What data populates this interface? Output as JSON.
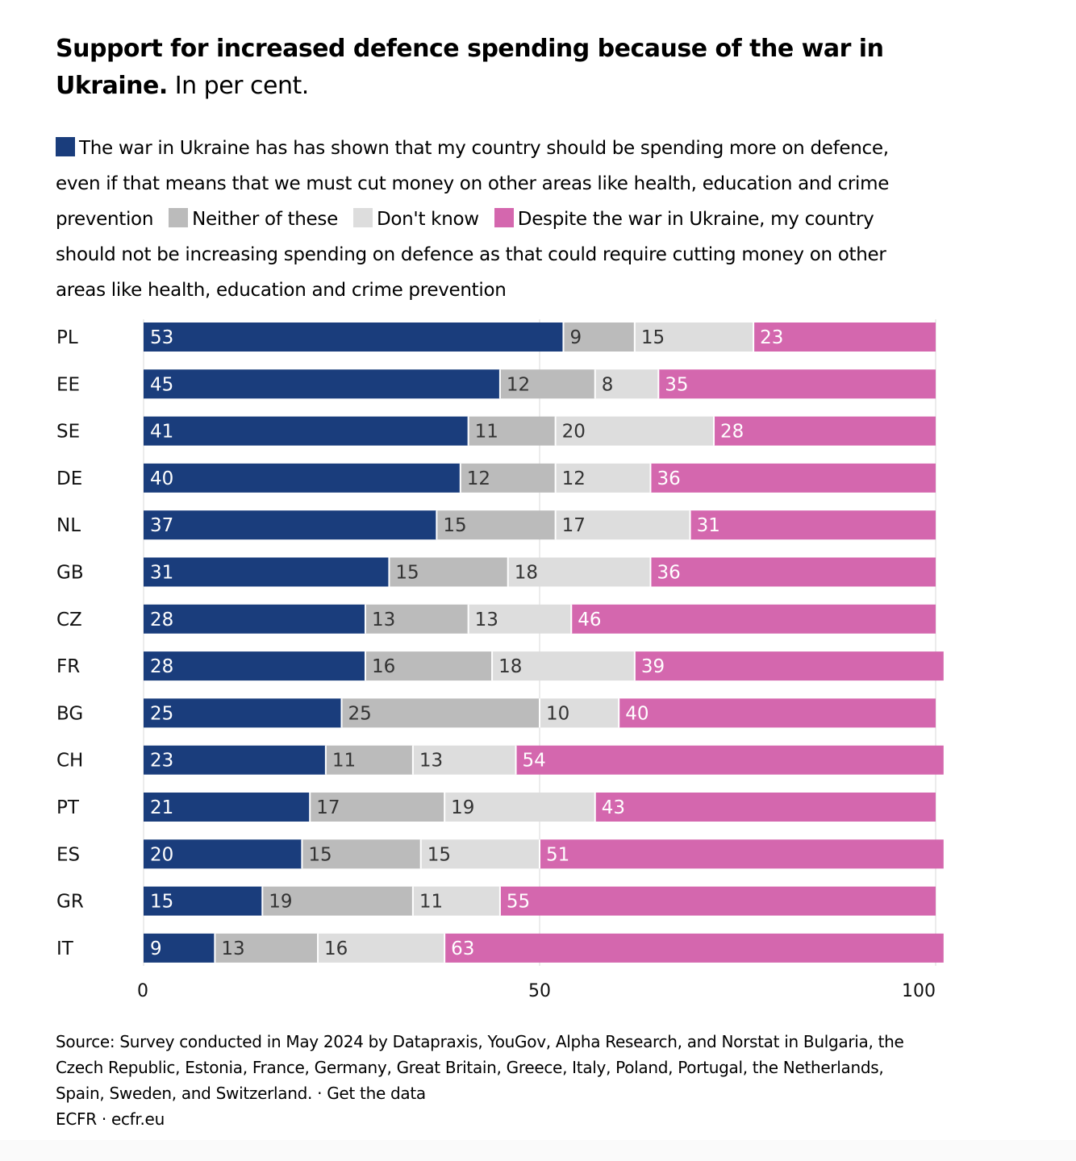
{
  "title": {
    "bold": "Support for increased defence spending because of the war in Ukraine.",
    "rest": "In per cent."
  },
  "legend": [
    {
      "label": "The war in Ukraine has has shown that my country should be spending more on defence, even if that means that we must cut money on other areas like health, education and crime prevention",
      "color": "#1a3d7c"
    },
    {
      "label": "Neither of these",
      "color": "#bbbbbb"
    },
    {
      "label": "Don't know",
      "color": "#dddddd"
    },
    {
      "label": "Despite the war in Ukraine, my country should not be increasing spending on defence as that could require cutting money on other areas like health, education and crime prevention",
      "color": "#d467ae"
    }
  ],
  "chart_data": {
    "type": "bar",
    "orientation": "horizontal",
    "stacked": true,
    "title": "Support for increased defence spending because of the war in Ukraine. In per cent.",
    "categories": [
      "PL",
      "EE",
      "SE",
      "DE",
      "NL",
      "GB",
      "CZ",
      "FR",
      "BG",
      "CH",
      "PT",
      "ES",
      "GR",
      "IT"
    ],
    "series": [
      {
        "name": "The war in Ukraine has has shown that my country should be spending more on defence, even if that means that we must cut money on other areas like health, education and crime prevention",
        "color": "#1a3d7c",
        "label_color": "#ffffff",
        "values": [
          53,
          45,
          41,
          40,
          37,
          31,
          28,
          28,
          25,
          23,
          21,
          20,
          15,
          9
        ]
      },
      {
        "name": "Neither of these",
        "color": "#bbbbbb",
        "label_color": "#333333",
        "values": [
          9,
          12,
          11,
          12,
          15,
          15,
          13,
          16,
          25,
          11,
          17,
          15,
          19,
          13
        ]
      },
      {
        "name": "Don't know",
        "color": "#dddddd",
        "label_color": "#333333",
        "values": [
          15,
          8,
          20,
          12,
          17,
          18,
          13,
          18,
          10,
          13,
          19,
          15,
          11,
          16
        ]
      },
      {
        "name": "Despite the war in Ukraine, my country should not be increasing spending on defence as that could require cutting money on other areas like health, education and crime prevention",
        "color": "#d467ae",
        "label_color": "#ffffff",
        "values": [
          23,
          35,
          28,
          36,
          31,
          36,
          46,
          39,
          40,
          54,
          43,
          51,
          55,
          63
        ]
      }
    ],
    "xlim": [
      0,
      100
    ],
    "xticks": [
      0,
      50,
      100
    ],
    "grid": true,
    "xlabel": "",
    "ylabel": ""
  },
  "footer": {
    "source": "Source: Survey conducted in May 2024 by Datapraxis, YouGov, Alpha Research, and Norstat in Bulgaria, the Czech Republic, Estonia, France, Germany, Great Britain, Greece, Italy, Poland, Portugal, the Netherlands, Spain, Sweden, and Switzerland.",
    "separator": "·",
    "data_link": "Get the data",
    "credit": "ECFR · ecfr.eu"
  }
}
